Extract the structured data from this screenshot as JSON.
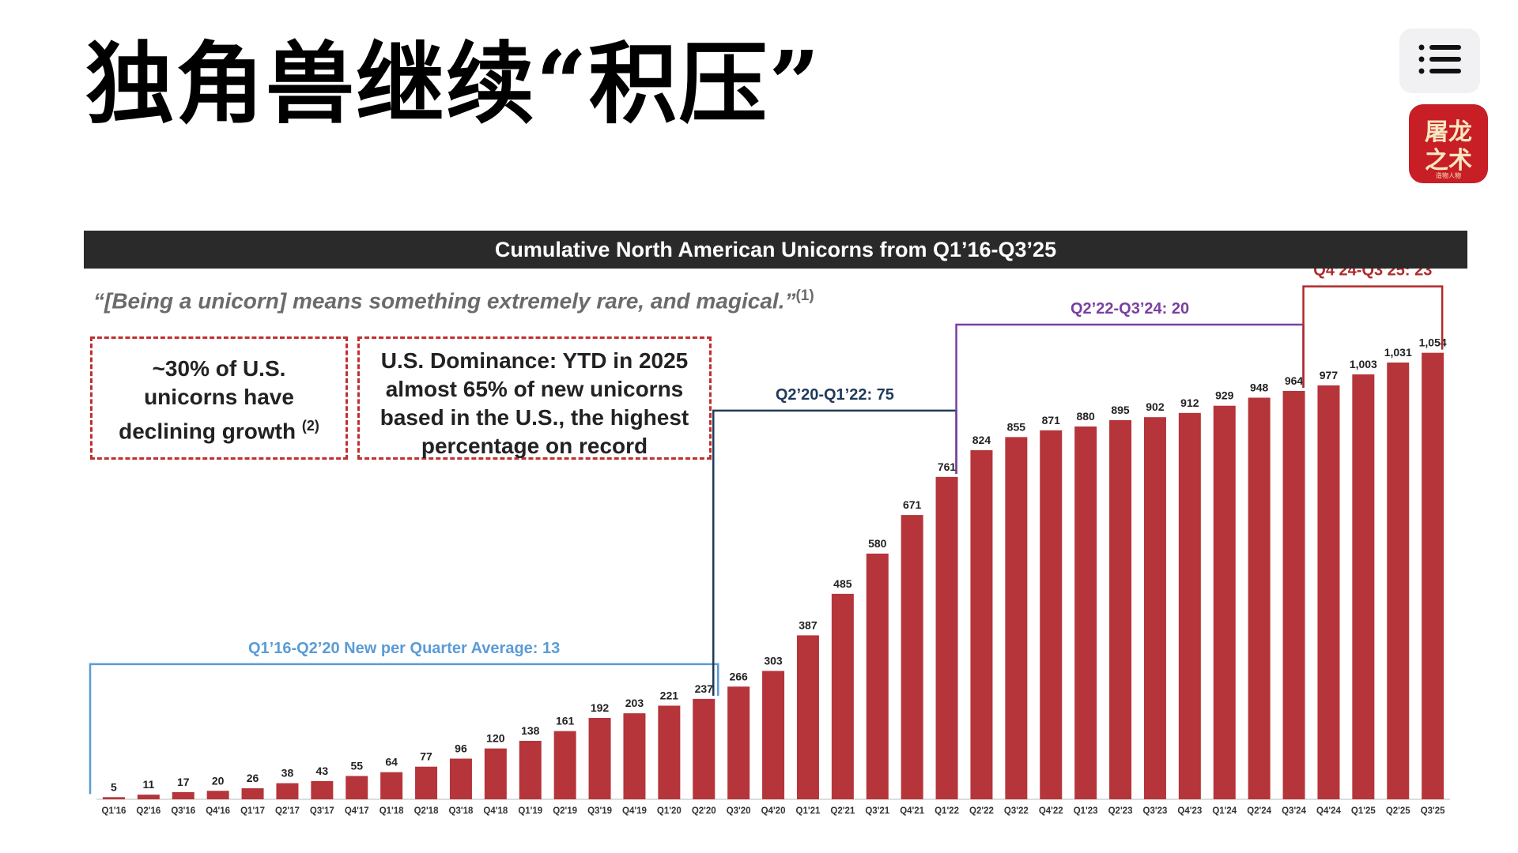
{
  "headline": "独角兽继续“积压”",
  "menu": {
    "icon": "list-menu-icon"
  },
  "logo": {
    "line1": "屠龙",
    "line2": "之术",
    "line3": "造物人物"
  },
  "colors": {
    "bar": "#b5353a",
    "blue": "#5b9bd5",
    "navy": "#1f3a5a",
    "purple": "#7b3fa0",
    "red": "#b02a2a"
  },
  "slide": {
    "title": "Cumulative North American Unicorns from Q1’16-Q3’25",
    "quote": "“[Being a unicorn] means something extremely rare, and magical.”",
    "quote_note": "(1)",
    "box1": {
      "lines": [
        "~30% of U.S.",
        "unicorns have",
        "declining growth"
      ],
      "note": "(2)"
    },
    "box2": {
      "lines": [
        "U.S. Dominance: YTD in 2025",
        "almost 65% of new unicorns",
        "based in the U.S., the highest",
        "percentage on record"
      ]
    }
  },
  "chart_data": {
    "type": "bar",
    "title": "Cumulative North American Unicorns from Q1’16-Q3’25",
    "categories": [
      "Q1'16",
      "Q2'16",
      "Q3'16",
      "Q4'16",
      "Q1'17",
      "Q2'17",
      "Q3'17",
      "Q4'17",
      "Q1'18",
      "Q2'18",
      "Q3'18",
      "Q4'18",
      "Q1'19",
      "Q2'19",
      "Q3'19",
      "Q4'19",
      "Q1'20",
      "Q2'20",
      "Q3'20",
      "Q4'20",
      "Q1'21",
      "Q2'21",
      "Q3'21",
      "Q4'21",
      "Q1'22",
      "Q2'22",
      "Q3'22",
      "Q4'22",
      "Q1'23",
      "Q2'23",
      "Q3'23",
      "Q4'23",
      "Q1'24",
      "Q2'24",
      "Q3'24",
      "Q4'24",
      "Q1'25",
      "Q2'25",
      "Q3'25"
    ],
    "values": [
      5,
      11,
      17,
      20,
      26,
      38,
      43,
      55,
      64,
      77,
      96,
      120,
      138,
      161,
      192,
      203,
      221,
      237,
      266,
      303,
      387,
      485,
      580,
      671,
      761,
      824,
      855,
      871,
      880,
      895,
      902,
      912,
      929,
      948,
      964,
      977,
      1003,
      1031,
      1054
    ],
    "value_labels": [
      "5",
      "11",
      "17",
      "20",
      "26",
      "38",
      "43",
      "55",
      "64",
      "77",
      "96",
      "120",
      "138",
      "161",
      "192",
      "203",
      "221",
      "237",
      "266",
      "303",
      "387",
      "485",
      "580",
      "671",
      "761",
      "824",
      "855",
      "871",
      "880",
      "895",
      "902",
      "912",
      "929",
      "948",
      "964",
      "977",
      "1,003",
      "1,031",
      "1,054"
    ],
    "ylim": [
      0,
      1100
    ],
    "grid": false,
    "legend": "none",
    "annotations": [
      {
        "text": "Q1’16-Q2’20 New per Quarter Average: 13",
        "start": 0,
        "end": 17,
        "color": "#5b9bd5"
      },
      {
        "text": "Q2’20-Q1’22: 75",
        "start": 17,
        "end": 24,
        "color": "#1f3a5a"
      },
      {
        "text": "Q2’22-Q3’24: 20",
        "start": 24,
        "end": 34,
        "color": "#7b3fa0"
      },
      {
        "text": "Q4’24-Q3’25: 23",
        "start": 34,
        "end": 38,
        "color": "#b02a2a"
      }
    ]
  }
}
